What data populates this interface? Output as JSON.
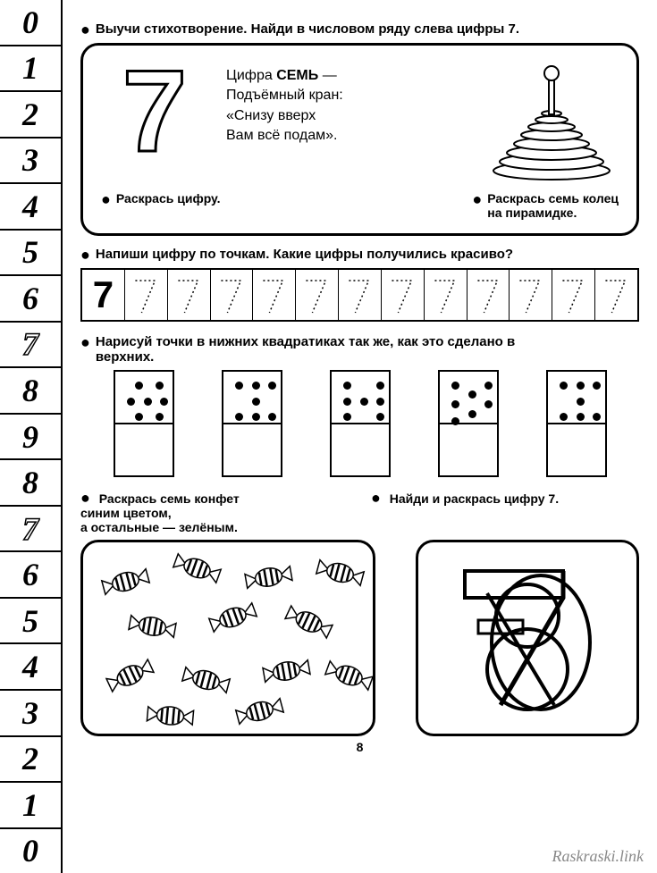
{
  "sidebar_numbers": [
    "0",
    "1",
    "2",
    "3",
    "4",
    "5",
    "6",
    "7",
    "8",
    "9",
    "8",
    "7",
    "6",
    "5",
    "4",
    "3",
    "2",
    "1",
    "0"
  ],
  "sidebar_outline_indices": [
    7,
    11
  ],
  "instr1": "Выучи стихотворение. Найди в числовом ряду слева цифры 7.",
  "big_number": "7",
  "poem_line1a": "Цифра ",
  "poem_line1b": "СЕМЬ",
  "poem_line1c": " —",
  "poem_line2": "Подъёмный кран:",
  "poem_line3": "«Снизу вверх",
  "poem_line4": "Вам всё подам».",
  "sub_instr1": "Раскрась цифру.",
  "sub_instr2a": "Раскрась семь колец",
  "sub_instr2b": "на пирамидке.",
  "instr2": "Напиши цифру по точкам. Какие цифры получились красиво?",
  "trace_count": 13,
  "instr3a": "Нарисуй точки в нижних квадратиках так же, как это сделано в",
  "instr3b": "верхних.",
  "dominos": [
    [
      [
        25,
        15
      ],
      [
        50,
        15
      ],
      [
        15,
        40
      ],
      [
        35,
        40
      ],
      [
        55,
        40
      ],
      [
        25,
        65
      ],
      [
        50,
        65
      ]
    ],
    [
      [
        15,
        15
      ],
      [
        35,
        15
      ],
      [
        55,
        15
      ],
      [
        35,
        40
      ],
      [
        15,
        65
      ],
      [
        35,
        65
      ],
      [
        55,
        65
      ]
    ],
    [
      [
        15,
        15
      ],
      [
        55,
        15
      ],
      [
        15,
        40
      ],
      [
        35,
        40
      ],
      [
        55,
        40
      ],
      [
        15,
        65
      ],
      [
        55,
        65
      ]
    ],
    [
      [
        15,
        15
      ],
      [
        55,
        15
      ],
      [
        35,
        30
      ],
      [
        15,
        45
      ],
      [
        55,
        45
      ],
      [
        35,
        60
      ],
      [
        15,
        72
      ]
    ],
    [
      [
        15,
        15
      ],
      [
        35,
        15
      ],
      [
        55,
        15
      ],
      [
        35,
        40
      ],
      [
        15,
        65
      ],
      [
        35,
        65
      ],
      [
        55,
        65
      ]
    ]
  ],
  "instr4a": "Раскрась семь конфет",
  "instr4b": "синим цветом,",
  "instr4c": "а остальные — зелёным.",
  "instr5": "Найди и раскрась цифру 7.",
  "candy_positions": [
    [
      20,
      30,
      -15
    ],
    [
      100,
      15,
      20
    ],
    [
      180,
      25,
      -10
    ],
    [
      260,
      20,
      15
    ],
    [
      50,
      80,
      10
    ],
    [
      140,
      70,
      -20
    ],
    [
      225,
      75,
      25
    ],
    [
      25,
      135,
      -25
    ],
    [
      110,
      140,
      15
    ],
    [
      200,
      130,
      -10
    ],
    [
      270,
      135,
      20
    ],
    [
      70,
      180,
      5
    ],
    [
      170,
      175,
      -15
    ]
  ],
  "page_number": "8",
  "watermark": "Raskraski.link",
  "colors": {
    "ink": "#000000",
    "bg": "#ffffff",
    "watermark": "#9a9a9a"
  }
}
